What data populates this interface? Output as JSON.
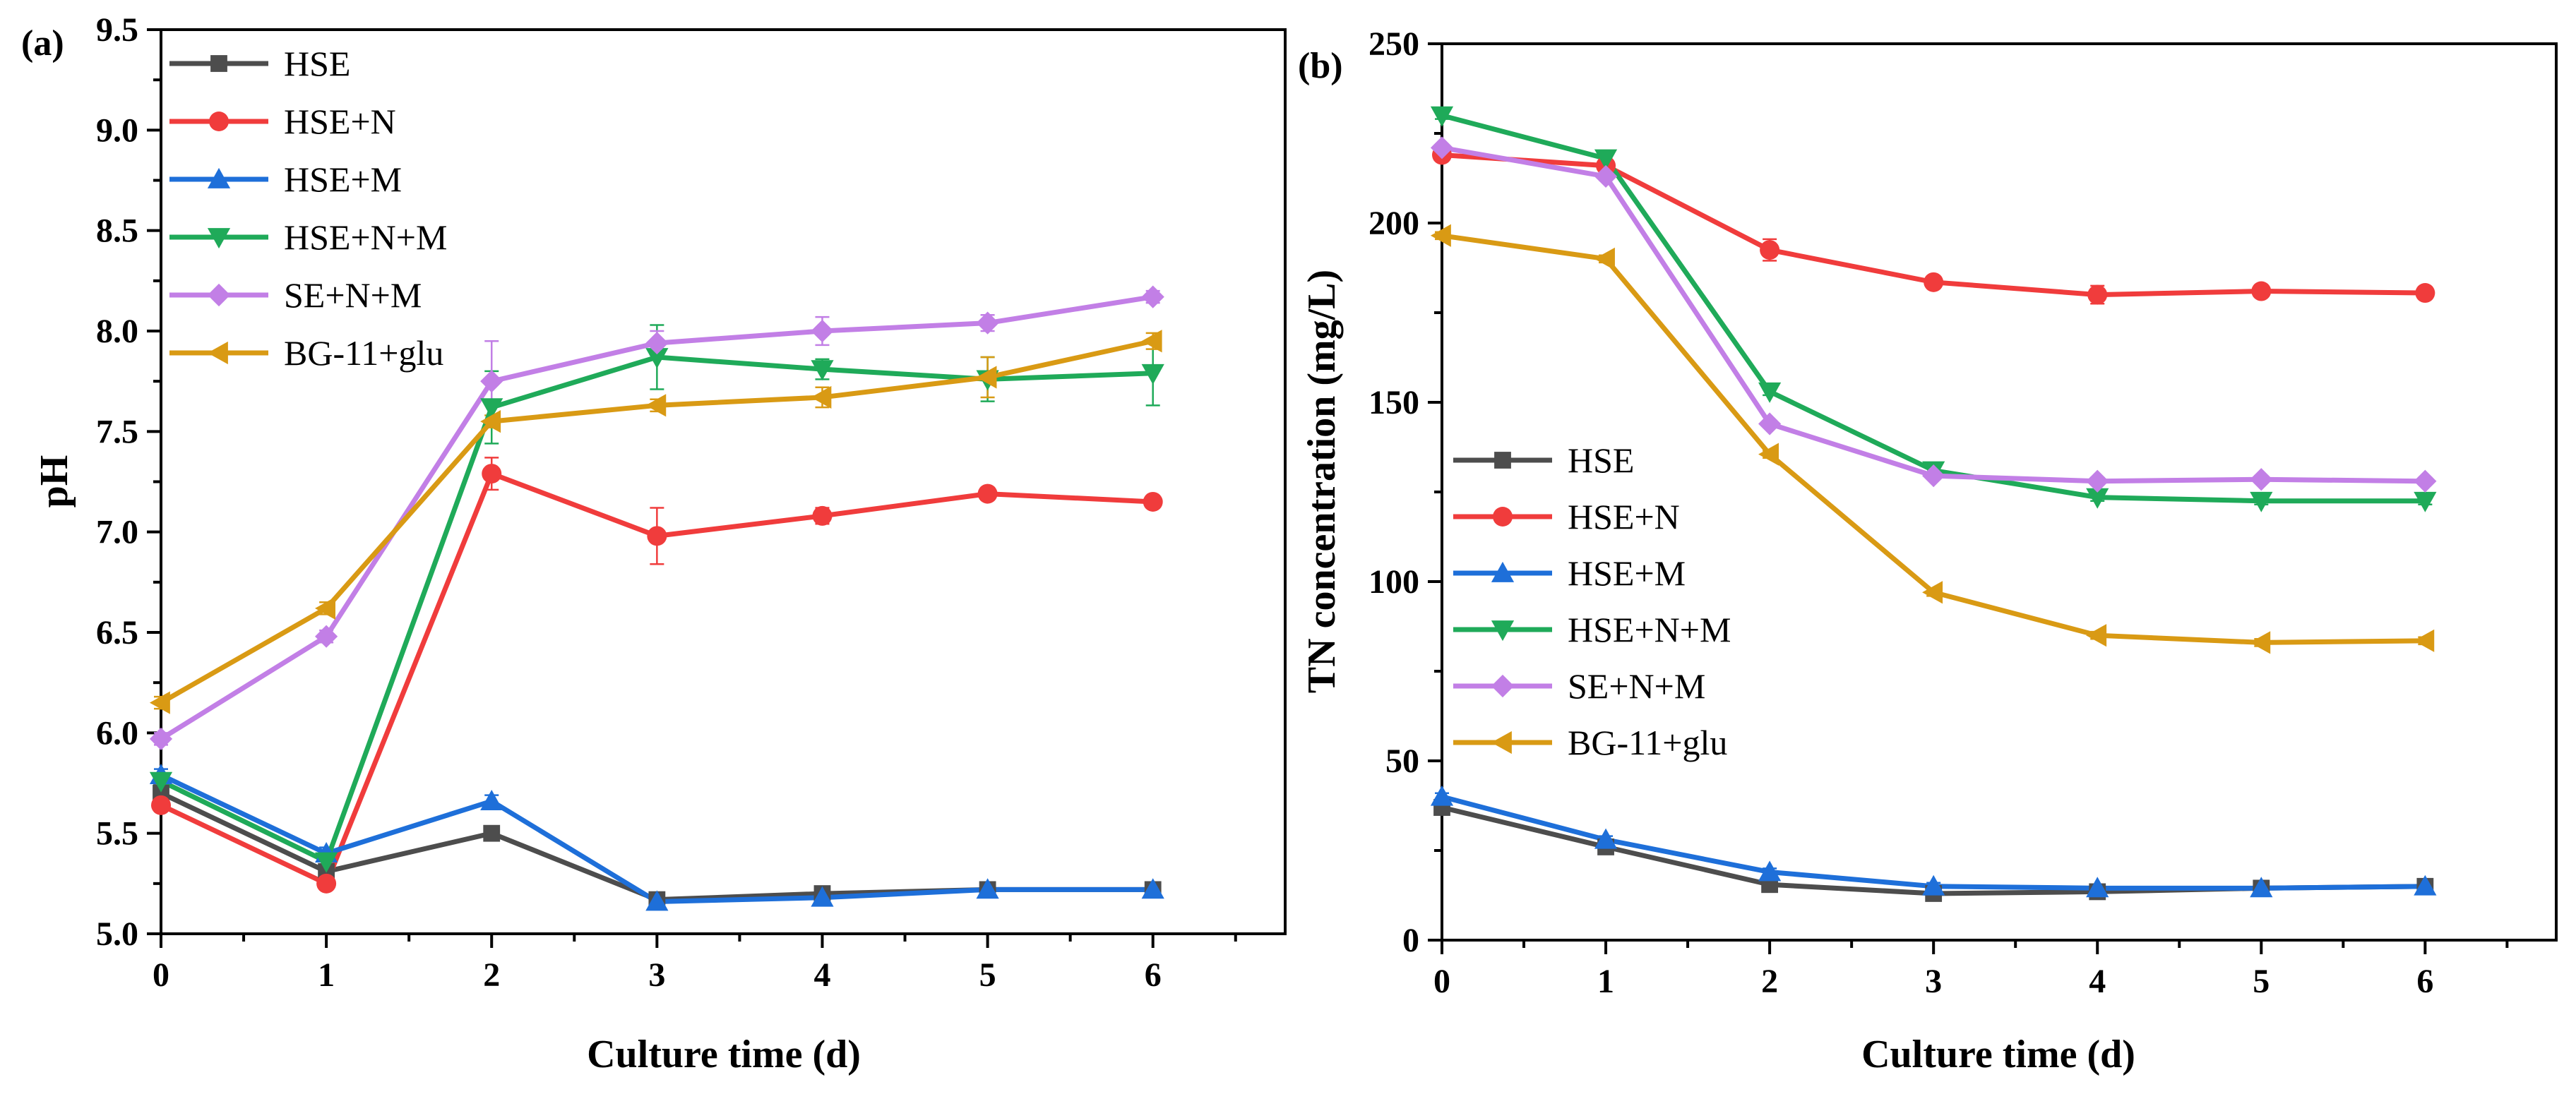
{
  "chart_data": [
    {
      "type": "line",
      "panel_label": "(a)",
      "title": "",
      "xlabel": "Culture time (d)",
      "ylabel": "pH",
      "xlim": [
        0,
        6.8
      ],
      "ylim": [
        5.0,
        9.5
      ],
      "x_ticks": [
        0,
        1,
        2,
        3,
        4,
        5,
        6
      ],
      "y_ticks": [
        5.0,
        5.5,
        6.0,
        6.5,
        7.0,
        7.5,
        8.0,
        8.5,
        9.0,
        9.5
      ],
      "y_tick_labels": [
        "5.0",
        "5.5",
        "6.0",
        "6.5",
        "7.0",
        "7.5",
        "8.0",
        "8.5",
        "9.0",
        "9.5"
      ],
      "legend_position": "top-left",
      "x": [
        0,
        1,
        2,
        3,
        4,
        5,
        6
      ],
      "series": [
        {
          "name": "HSE",
          "color": "#4d4d4d",
          "marker": "square",
          "values": [
            5.7,
            5.31,
            5.5,
            5.17,
            5.2,
            5.22,
            5.22
          ],
          "errors": [
            0.03,
            0.03,
            0.03,
            0.02,
            0.02,
            0.02,
            0.02
          ]
        },
        {
          "name": "HSE+N",
          "color": "#f03c3c",
          "marker": "circle",
          "values": [
            5.64,
            5.25,
            7.29,
            6.98,
            7.08,
            7.19,
            7.15
          ],
          "errors": [
            0.03,
            0.03,
            0.08,
            0.14,
            0.04,
            0.03,
            0.03
          ]
        },
        {
          "name": "HSE+M",
          "color": "#1e6fd9",
          "marker": "triangle-up",
          "values": [
            5.79,
            5.4,
            5.66,
            5.16,
            5.18,
            5.22,
            5.22
          ],
          "errors": [
            0.03,
            0.03,
            0.03,
            0.02,
            0.02,
            0.02,
            0.02
          ]
        },
        {
          "name": "HSE+N+M",
          "color": "#1faa59",
          "marker": "triangle-down",
          "values": [
            5.76,
            5.36,
            7.62,
            7.87,
            7.81,
            7.76,
            7.79
          ],
          "errors": [
            0.03,
            0.03,
            0.18,
            0.16,
            0.05,
            0.11,
            0.16
          ]
        },
        {
          "name": "SE+N+M",
          "color": "#c27fe6",
          "marker": "diamond",
          "values": [
            5.97,
            6.48,
            7.75,
            7.94,
            8.0,
            8.04,
            8.17
          ],
          "errors": [
            0.03,
            0.03,
            0.2,
            0.06,
            0.07,
            0.04,
            0.03
          ]
        },
        {
          "name": "BG-11+glu",
          "color": "#d99a14",
          "marker": "triangle-left",
          "values": [
            6.15,
            6.62,
            7.55,
            7.63,
            7.67,
            7.77,
            7.95
          ],
          "errors": [
            0.03,
            0.03,
            0.03,
            0.03,
            0.05,
            0.1,
            0.04
          ]
        }
      ]
    },
    {
      "type": "line",
      "panel_label": "(b)",
      "title": "",
      "xlabel": "Culture time (d)",
      "ylabel": "TN concentration (mg/L)",
      "xlim": [
        0,
        6.8
      ],
      "ylim": [
        0,
        250
      ],
      "x_ticks": [
        0,
        1,
        2,
        3,
        4,
        5,
        6
      ],
      "y_ticks": [
        0,
        50,
        100,
        150,
        200,
        250
      ],
      "y_tick_labels": [
        "0",
        "50",
        "100",
        "150",
        "200",
        "250"
      ],
      "legend_position": "center-left",
      "x": [
        0,
        1,
        2,
        3,
        4,
        5,
        6
      ],
      "series": [
        {
          "name": "HSE",
          "color": "#4d4d4d",
          "marker": "square",
          "values": [
            37,
            26,
            15.5,
            13,
            13.5,
            14.5,
            15
          ],
          "errors": [
            1,
            1,
            1,
            1,
            1,
            1,
            1
          ]
        },
        {
          "name": "HSE+N",
          "color": "#f03c3c",
          "marker": "circle",
          "values": [
            219,
            216,
            192.5,
            183.5,
            180,
            181,
            180.5
          ],
          "errors": [
            1,
            1,
            3,
            1.5,
            2.5,
            1.5,
            1
          ]
        },
        {
          "name": "HSE+M",
          "color": "#1e6fd9",
          "marker": "triangle-up",
          "values": [
            40,
            28,
            19,
            15,
            14.5,
            14.5,
            15
          ],
          "errors": [
            1,
            1,
            1,
            1,
            1,
            1,
            1
          ]
        },
        {
          "name": "HSE+N+M",
          "color": "#1faa59",
          "marker": "triangle-down",
          "values": [
            230,
            218,
            153,
            131,
            123.5,
            122.5,
            122.5
          ],
          "errors": [
            1,
            1,
            1,
            1,
            1,
            1,
            1
          ]
        },
        {
          "name": "SE+N+M",
          "color": "#c27fe6",
          "marker": "diamond",
          "values": [
            221,
            213,
            144,
            129.5,
            128,
            128.5,
            128
          ],
          "errors": [
            1,
            1,
            1,
            1,
            1,
            1,
            1
          ]
        },
        {
          "name": "BG-11+glu",
          "color": "#d99a14",
          "marker": "triangle-left",
          "values": [
            196.5,
            190,
            135.5,
            97,
            85,
            83,
            83.5
          ],
          "errors": [
            1,
            1,
            1,
            1,
            1,
            1,
            1
          ]
        }
      ]
    }
  ]
}
